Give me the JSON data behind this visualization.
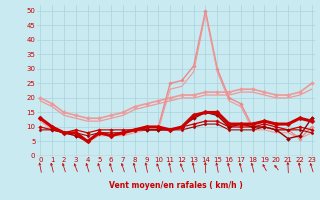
{
  "xlabel": "Vent moyen/en rafales ( km/h )",
  "xlim": [
    -0.3,
    23.3
  ],
  "ylim": [
    0,
    52
  ],
  "yticks": [
    0,
    5,
    10,
    15,
    20,
    25,
    30,
    35,
    40,
    45,
    50
  ],
  "xticks": [
    0,
    1,
    2,
    3,
    4,
    5,
    6,
    7,
    8,
    9,
    10,
    11,
    12,
    13,
    14,
    15,
    16,
    17,
    18,
    19,
    20,
    21,
    22,
    23
  ],
  "bg_color": "#c8eaf0",
  "grid_color": "#a8d4de",
  "series": [
    {
      "y": [
        13,
        10,
        8,
        8,
        5,
        8,
        7,
        8,
        9,
        10,
        10,
        9,
        10,
        14,
        15,
        15,
        11,
        11,
        11,
        12,
        11,
        11,
        13,
        12
      ],
      "color": "#cc0000",
      "lw": 2.2,
      "marker": "D",
      "ms": 2.5,
      "zorder": 6
    },
    {
      "y": [
        10,
        9,
        8,
        9,
        8,
        9,
        9,
        9,
        9,
        10,
        10,
        9,
        10,
        11,
        12,
        12,
        10,
        10,
        10,
        11,
        10,
        9,
        10,
        9
      ],
      "color": "#cc0000",
      "lw": 0.9,
      "marker": "D",
      "ms": 1.8,
      "zorder": 5
    },
    {
      "y": [
        9,
        9,
        8,
        8,
        7,
        8,
        8,
        8,
        9,
        9,
        9,
        9,
        9,
        10,
        11,
        11,
        9,
        9,
        9,
        10,
        9,
        9,
        9,
        8
      ],
      "color": "#aa0000",
      "lw": 0.8,
      "marker": "D",
      "ms": 1.5,
      "zorder": 5
    },
    {
      "y": [
        13,
        10,
        8,
        7,
        5,
        8,
        7,
        8,
        9,
        9,
        9,
        9,
        10,
        13,
        15,
        14,
        10,
        11,
        10,
        10,
        9,
        6,
        7,
        13
      ],
      "color": "#990000",
      "lw": 1.0,
      "marker": "D",
      "ms": 2.0,
      "zorder": 5
    },
    {
      "y": [
        20,
        18,
        15,
        14,
        13,
        13,
        14,
        15,
        17,
        18,
        19,
        20,
        21,
        21,
        22,
        22,
        22,
        23,
        23,
        22,
        21,
        21,
        22,
        25
      ],
      "color": "#ee9999",
      "lw": 1.2,
      "marker": "D",
      "ms": 2.0,
      "zorder": 3
    },
    {
      "y": [
        19,
        17,
        14,
        13,
        12,
        12,
        13,
        14,
        16,
        17,
        18,
        19,
        20,
        20,
        21,
        21,
        21,
        22,
        22,
        21,
        20,
        20,
        21,
        23
      ],
      "color": "#ee9999",
      "lw": 0.9,
      "marker": null,
      "ms": 0,
      "zorder": 3
    },
    {
      "y": [
        13,
        10,
        8,
        8,
        5,
        8,
        7,
        8,
        9,
        10,
        10,
        25,
        26,
        31,
        50,
        30,
        20,
        18,
        10,
        10,
        9,
        9,
        6,
        10
      ],
      "color": "#ee8888",
      "lw": 1.0,
      "marker": "D",
      "ms": 1.8,
      "zorder": 4
    },
    {
      "y": [
        12,
        9,
        8,
        7,
        5,
        7,
        7,
        7,
        8,
        9,
        9,
        23,
        24,
        29,
        49,
        29,
        19,
        17,
        9,
        9,
        8,
        8,
        6,
        8
      ],
      "color": "#ee9999",
      "lw": 0.8,
      "marker": null,
      "ms": 0,
      "zorder": 4
    }
  ],
  "arrow_angles_deg": [
    200,
    205,
    210,
    215,
    210,
    210,
    210,
    210,
    205,
    200,
    215,
    200,
    215,
    200,
    185,
    200,
    205,
    205,
    205,
    225,
    235,
    185,
    200,
    210
  ],
  "arrow_color": "#cc0000",
  "text_color": "#cc0000"
}
